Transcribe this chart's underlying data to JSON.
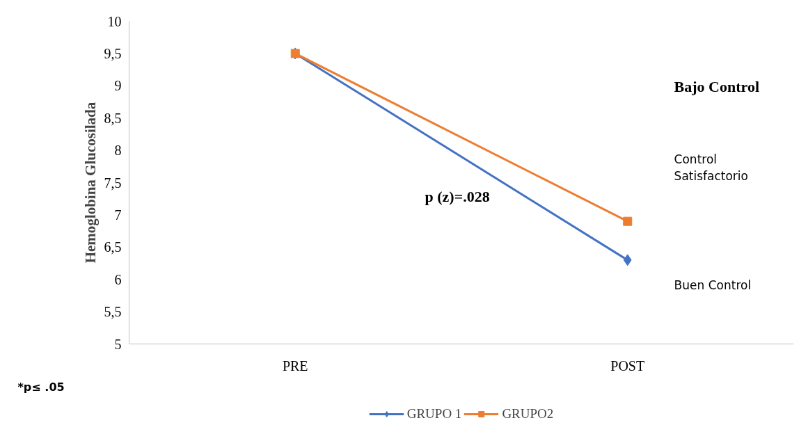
{
  "chart_data": {
    "type": "line",
    "ylabel": "Hemoglobina Glucosilada",
    "categories": [
      "PRE",
      "POST"
    ],
    "series": [
      {
        "name": "GRUPO 1",
        "color": "#4472c4",
        "values": [
          9.5,
          6.3
        ],
        "marker": "diamond"
      },
      {
        "name": "GRUPO2",
        "color": "#ed7d31",
        "values": [
          9.5,
          6.9
        ],
        "marker": "square"
      }
    ],
    "ylim": [
      5,
      10
    ],
    "yticks": [
      5,
      {
        "value": 5.5,
        "label": "5,5"
      },
      6,
      {
        "value": 6.5,
        "label": "6,5"
      },
      7,
      {
        "value": 7.5,
        "label": "7,5"
      },
      8,
      {
        "value": 8.5,
        "label": "8,5"
      },
      9,
      {
        "value": 9.5,
        "label": "9,5"
      },
      10
    ],
    "annotations": [
      "Bajo Control",
      "Control Satisfactorio",
      "Buen Control",
      "p (z)=.028",
      "*p≤ .05"
    ],
    "legend": "bottom",
    "grid": false,
    "line_style": "solid"
  }
}
